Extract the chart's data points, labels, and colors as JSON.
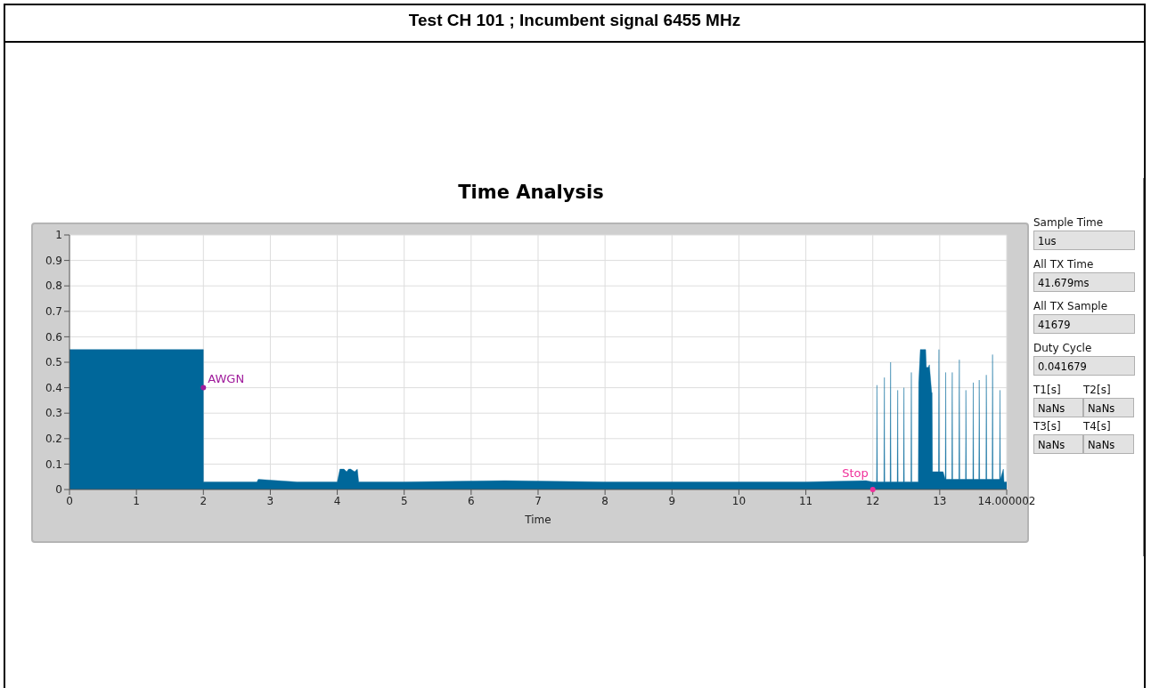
{
  "chart_data": {
    "type": "area",
    "title": "Test CH 101 ; Incumbent signal 6455 MHz",
    "subtitle": "Time Analysis",
    "xlabel": "Time",
    "x": [
      0,
      1,
      2,
      2.001,
      2.4,
      2.8,
      2.82,
      3.4,
      4.0,
      4.04,
      4.1,
      4.14,
      4.17,
      4.2,
      4.26,
      4.3,
      4.32,
      5,
      6.5,
      8,
      9,
      10,
      11,
      11.9,
      12,
      12.056,
      12.062,
      12.068,
      12.167,
      12.173,
      12.179,
      12.26,
      12.266,
      12.272,
      12.366,
      12.372,
      12.378,
      12.459,
      12.465,
      12.471,
      12.57,
      12.576,
      12.582,
      12.68,
      12.686,
      12.71,
      12.74,
      12.79,
      12.8,
      12.83,
      12.845,
      12.88,
      12.886,
      12.892,
      12.95,
      12.982,
      12.988,
      12.994,
      13.05,
      13.083,
      13.089,
      13.095,
      13.181,
      13.187,
      13.193,
      13.287,
      13.293,
      13.299,
      13.385,
      13.391,
      13.397,
      13.495,
      13.501,
      13.507,
      13.584,
      13.59,
      13.596,
      13.69,
      13.696,
      13.702,
      13.783,
      13.789,
      13.795,
      13.894,
      13.9,
      13.906,
      13.95,
      13.96,
      14.000002
    ],
    "values": [
      0.55,
      0.55,
      0.55,
      0.03,
      0.03,
      0.03,
      0.04,
      0.03,
      0.03,
      0.08,
      0.08,
      0.07,
      0.08,
      0.08,
      0.07,
      0.08,
      0.03,
      0.03,
      0.035,
      0.03,
      0.03,
      0.03,
      0.03,
      0.035,
      0.03,
      0.03,
      0.41,
      0.03,
      0.03,
      0.44,
      0.03,
      0.03,
      0.5,
      0.03,
      0.03,
      0.39,
      0.03,
      0.03,
      0.4,
      0.03,
      0.03,
      0.46,
      0.03,
      0.03,
      0.42,
      0.55,
      0.55,
      0.55,
      0.48,
      0.48,
      0.49,
      0.38,
      0.38,
      0.07,
      0.07,
      0.07,
      0.55,
      0.07,
      0.07,
      0.04,
      0.46,
      0.04,
      0.04,
      0.46,
      0.04,
      0.04,
      0.51,
      0.04,
      0.04,
      0.39,
      0.04,
      0.04,
      0.42,
      0.04,
      0.04,
      0.43,
      0.04,
      0.04,
      0.45,
      0.04,
      0.04,
      0.53,
      0.04,
      0.04,
      0.39,
      0.04,
      0.08,
      0.03,
      0.03
    ],
    "color": "#00679a",
    "marker": "none",
    "grid": true,
    "xlim": [
      0,
      14.000002
    ],
    "xticks": [
      0,
      1,
      2,
      3,
      4,
      5,
      6,
      7,
      8,
      9,
      10,
      11,
      12,
      13,
      14.000002
    ],
    "ylim": [
      0,
      1
    ],
    "yticks": [
      0,
      0.1,
      0.2,
      0.3,
      0.4,
      0.5,
      0.6,
      0.7,
      0.8,
      0.9,
      1
    ],
    "annotations": [
      {
        "text": "AWGN",
        "x": 2,
        "y": 0.4
      },
      {
        "text": "Stop",
        "x": 12,
        "y": 0
      },
      "Sample Time",
      "1us",
      "All TX Time",
      "41.679ms",
      "All TX Sample",
      "41679",
      "Duty Cycle",
      "0.041679",
      "T1[s]",
      "T2[s]",
      "NaNs",
      "NaNs",
      "T3[s]",
      "T4[s]",
      "NaNs",
      "NaNs"
    ]
  }
}
